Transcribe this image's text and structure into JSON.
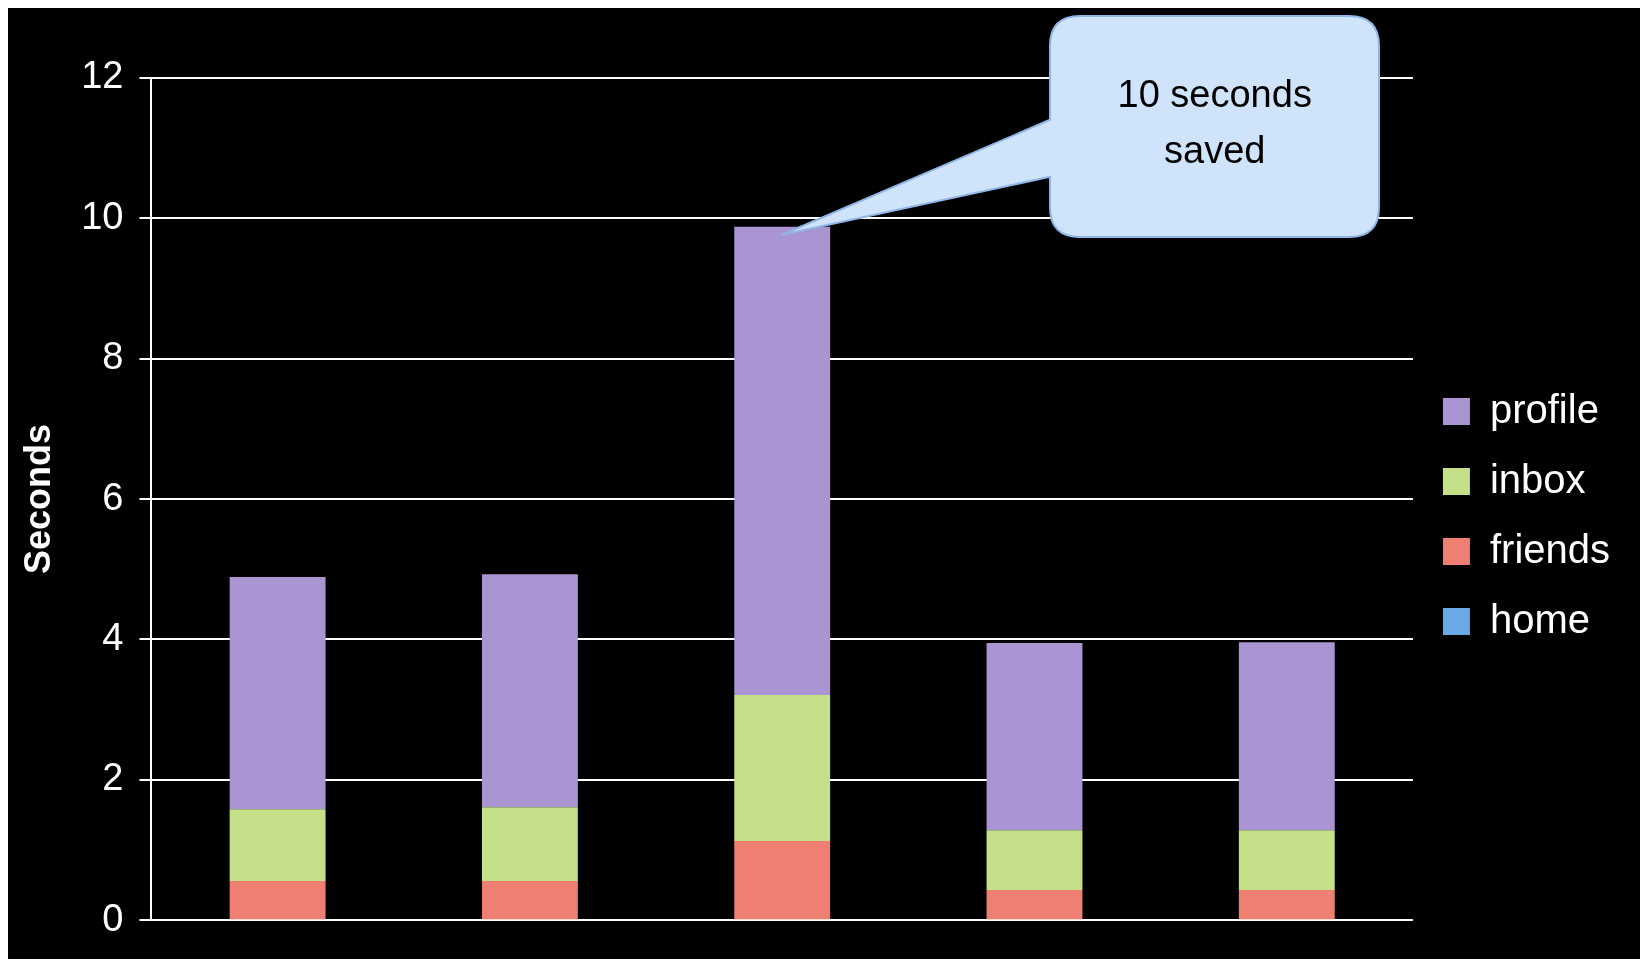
{
  "chart_data": {
    "type": "bar",
    "stacked": true,
    "ylabel": "Seconds",
    "categories": [
      null,
      null,
      null,
      null,
      null
    ],
    "series": [
      {
        "name": "home",
        "color": "#6aa8e8",
        "values": [
          0,
          0,
          0,
          0,
          0
        ]
      },
      {
        "name": "friends",
        "color": "#ef7f72",
        "values": [
          0.56,
          0.56,
          1.13,
          0.43,
          0.43
        ]
      },
      {
        "name": "inbox",
        "color": "#c4e089",
        "values": [
          1.02,
          1.05,
          2.08,
          0.85,
          0.85
        ]
      },
      {
        "name": "profile",
        "color": "#ab94d2",
        "values": [
          3.31,
          3.32,
          6.67,
          2.67,
          2.68
        ]
      }
    ],
    "ylim": [
      0,
      12
    ],
    "yticks": [
      0,
      2,
      4,
      6,
      8,
      10,
      12
    ],
    "grid": "y",
    "legend": "right",
    "annotations": [
      "10 seconds saved"
    ]
  }
}
